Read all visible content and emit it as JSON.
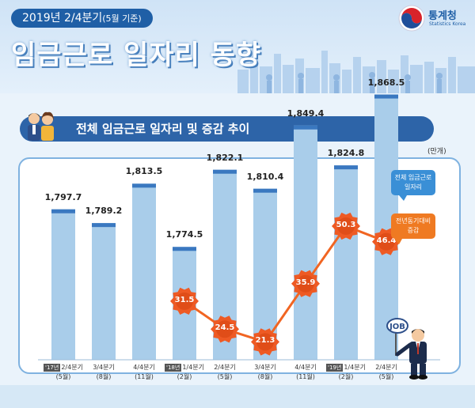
{
  "header": {
    "date_label": "2019년 2/4분기",
    "date_note": "(5월 기준)",
    "title": "임금근로 일자리 동향",
    "logo_name": "통계청",
    "logo_sub": "Statistics Korea"
  },
  "section": {
    "title": "전체 임금근로 일자리 및 증감 추이",
    "unit": "(만개)"
  },
  "legend": {
    "bar_label_1": "전체 임금근로",
    "bar_label_2": "일자리",
    "line_label_1": "전년동기대비",
    "line_label_2": "증감"
  },
  "colors": {
    "bar": "#a9cdea",
    "bar_cap": "#3a78c0",
    "line": "#f16522",
    "gear": "#ee5a24",
    "header_blue": "#1f5fa6"
  },
  "chart_data": {
    "type": "bar",
    "categories": [
      {
        "year_tag": "'17년",
        "quarter": "2/4분기",
        "month": "(5월)"
      },
      {
        "year_tag": "",
        "quarter": "3/4분기",
        "month": "(8월)"
      },
      {
        "year_tag": "",
        "quarter": "4/4분기",
        "month": "(11월)"
      },
      {
        "year_tag": "'18년",
        "quarter": "1/4분기",
        "month": "(2월)"
      },
      {
        "year_tag": "",
        "quarter": "2/4분기",
        "month": "(5월)"
      },
      {
        "year_tag": "",
        "quarter": "3/4분기",
        "month": "(8월)"
      },
      {
        "year_tag": "",
        "quarter": "4/4분기",
        "month": "(11월)"
      },
      {
        "year_tag": "'19년",
        "quarter": "1/4분기",
        "month": "(2월)"
      },
      {
        "year_tag": "",
        "quarter": "2/4분기",
        "month": "(5월)"
      }
    ],
    "series": [
      {
        "values": [
          1797.7,
          1789.2,
          1813.5,
          1774.5,
          1822.1,
          1810.4,
          1849.4,
          1824.8,
          1868.5
        ],
        "labels": [
          "1,797.7",
          "1,789.2",
          "1,813.5",
          "1,774.5",
          "1,822.1",
          "1,810.4",
          "1,849.4",
          "1,824.8",
          "1,868.5"
        ]
      },
      {
        "type": "line",
        "values": [
          null,
          null,
          null,
          31.5,
          24.5,
          21.3,
          35.9,
          50.3,
          46.4
        ],
        "labels": [
          "",
          "",
          "",
          "31.5",
          "24.5",
          "21.3",
          "35.9",
          "50.3",
          "46.4"
        ]
      }
    ]
  }
}
